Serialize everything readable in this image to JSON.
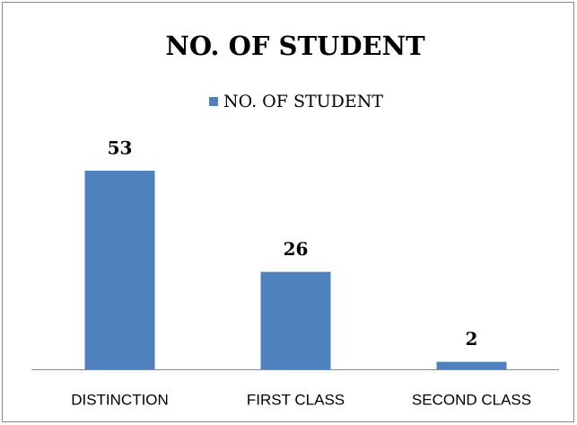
{
  "chart_data": {
    "type": "bar",
    "title": "NO. OF STUDENT",
    "categories": [
      "DISTINCTION",
      "FIRST CLASS",
      "SECOND CLASS"
    ],
    "series": [
      {
        "name": "NO. OF STUDENT",
        "color": "#4f81bd",
        "values": [
          53,
          26,
          2
        ]
      }
    ],
    "legend": "top"
  }
}
